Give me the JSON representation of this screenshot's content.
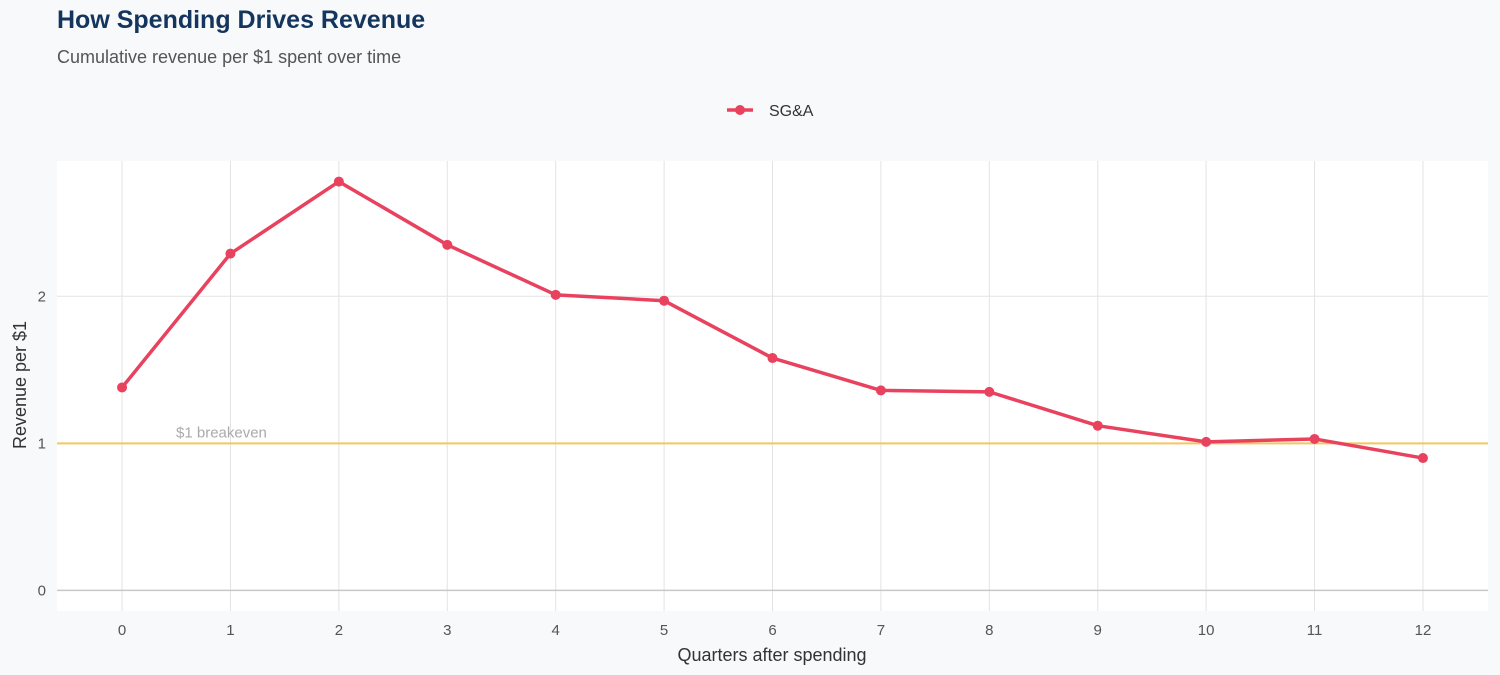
{
  "title": "How Spending Drives Revenue",
  "subtitle": "Cumulative revenue per $1 spent over time",
  "colors": {
    "series": "#e8425f",
    "breakeven": "#f5c75a",
    "grid": "#e3e3e3",
    "axis": "#c8c8c8",
    "panel": "#ffffff",
    "background": "#f8f9fb",
    "title": "#14355e"
  },
  "chart_data": {
    "type": "line",
    "title": "How Spending Drives Revenue",
    "subtitle": "Cumulative revenue per $1 spent over time",
    "xlabel": "Quarters after spending",
    "ylabel": "Revenue per $1",
    "x": [
      0,
      1,
      2,
      3,
      4,
      5,
      6,
      7,
      8,
      9,
      10,
      11,
      12
    ],
    "series": [
      {
        "name": "SG&A",
        "values": [
          1.38,
          2.29,
          2.78,
          2.35,
          2.01,
          1.97,
          1.58,
          1.36,
          1.35,
          1.12,
          1.01,
          1.03,
          0.9
        ]
      }
    ],
    "xticks": [
      "0",
      "1",
      "2",
      "3",
      "4",
      "5",
      "6",
      "7",
      "8",
      "9",
      "10",
      "11",
      "12"
    ],
    "yticks": [
      "0",
      "1",
      "2"
    ],
    "xlim": [
      -0.6,
      12.6
    ],
    "ylim": [
      -0.14,
      2.92
    ],
    "grid": true,
    "legend": "top-center",
    "annotations": [
      {
        "type": "hline",
        "y": 1,
        "label": "$1 breakeven"
      }
    ]
  }
}
